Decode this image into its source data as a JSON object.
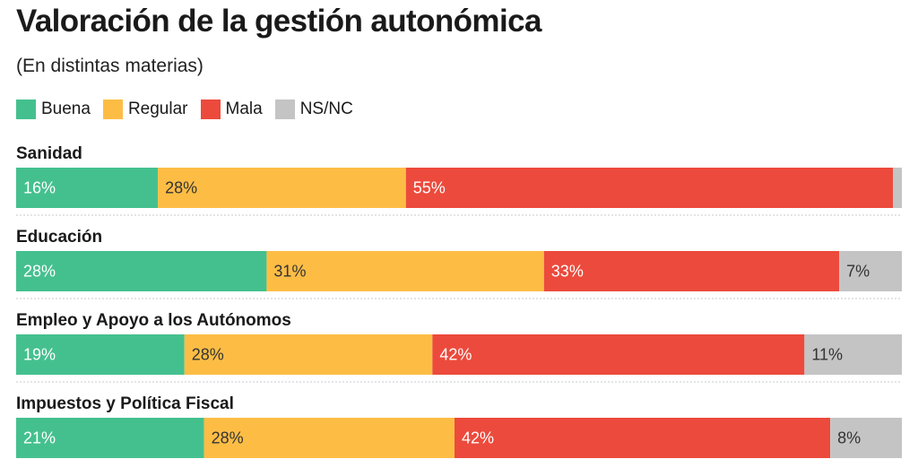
{
  "title": "Valoración de la gestión autonómica",
  "subtitle": "(En distintas materias)",
  "colors": {
    "Buena": "#44c08e",
    "Regular": "#fdbd45",
    "Mala": "#ec4a3c",
    "NS/NC": "#c4c4c4"
  },
  "legend": [
    "Buena",
    "Regular",
    "Mala",
    "NS/NC"
  ],
  "chart_data": {
    "type": "bar",
    "stacked": true,
    "orientation": "horizontal",
    "categories": [
      "Sanidad",
      "Educación",
      "Empleo y Apoyo a los Autónomos",
      "Impuestos y Política Fiscal"
    ],
    "series": [
      {
        "name": "Buena",
        "values": [
          16,
          28,
          19,
          21
        ],
        "labels": [
          "16%",
          "28%",
          "19%",
          "21%"
        ]
      },
      {
        "name": "Regular",
        "values": [
          28,
          31,
          28,
          28
        ],
        "labels": [
          "28%",
          "31%",
          "28%",
          "28%"
        ]
      },
      {
        "name": "Mala",
        "values": [
          55,
          33,
          42,
          42
        ],
        "labels": [
          "55%",
          "33%",
          "42%",
          "42%"
        ]
      },
      {
        "name": "NS/NC",
        "values": [
          1,
          7,
          11,
          8
        ],
        "labels": [
          "",
          "7%",
          "11%",
          "8%"
        ]
      }
    ]
  }
}
